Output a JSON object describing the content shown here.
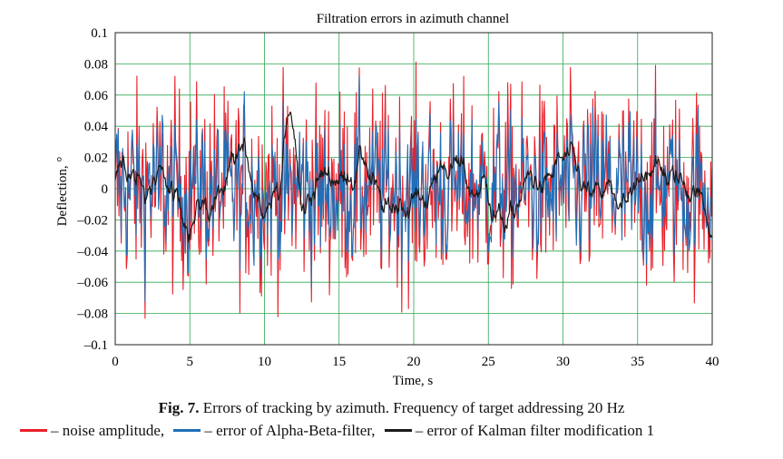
{
  "chart_data": {
    "type": "line",
    "title": "Filtration errors in azimuth channel",
    "xlabel": "Time, s",
    "ylabel": "Deflection, °",
    "xlim": [
      0,
      40
    ],
    "ylim": [
      -0.1,
      0.1
    ],
    "x_ticks": [
      0,
      5,
      10,
      15,
      20,
      25,
      30,
      35,
      40
    ],
    "y_ticks": [
      0.1,
      0.08,
      0.06,
      0.04,
      0.02,
      0,
      -0.02,
      -0.04,
      -0.06,
      -0.08,
      -0.1
    ],
    "x_tick_labels": [
      "0",
      "5",
      "10",
      "15",
      "20",
      "25",
      "30",
      "35",
      "40"
    ],
    "y_tick_labels": [
      "0.1",
      "0.08",
      "0.06",
      "0.04",
      "0.02",
      "0",
      "–0.02",
      "–0.04",
      "–0.06",
      "–0.08",
      "–0.1"
    ],
    "grid": true,
    "grid_color": "#2fa84f",
    "series": [
      {
        "name": "noise amplitude",
        "color": "#e8202a",
        "amplitude_max": 0.085,
        "amplitude_min": -0.09
      },
      {
        "name": "error of Alpha-Beta-filter",
        "color": "#1f6fb8",
        "amplitude_max": 0.072,
        "amplitude_min": -0.082
      },
      {
        "name": "error of Kalman filter modification 1",
        "color": "#1a1a1a",
        "amplitude_max": 0.065,
        "amplitude_min": -0.038
      }
    ]
  },
  "caption": {
    "fig_label": "Fig. 7.",
    "fig_text": " Errors of tracking by azimuth. Frequency of target addressing 20 Hz",
    "legend": [
      {
        "text": "– noise amplitude,",
        "color": "#e8202a"
      },
      {
        "text": "– error of Alpha-Beta-filter,",
        "color": "#1f6fb8"
      },
      {
        "text": "– error of Kalman filter modification 1",
        "color": "#1a1a1a"
      }
    ]
  }
}
